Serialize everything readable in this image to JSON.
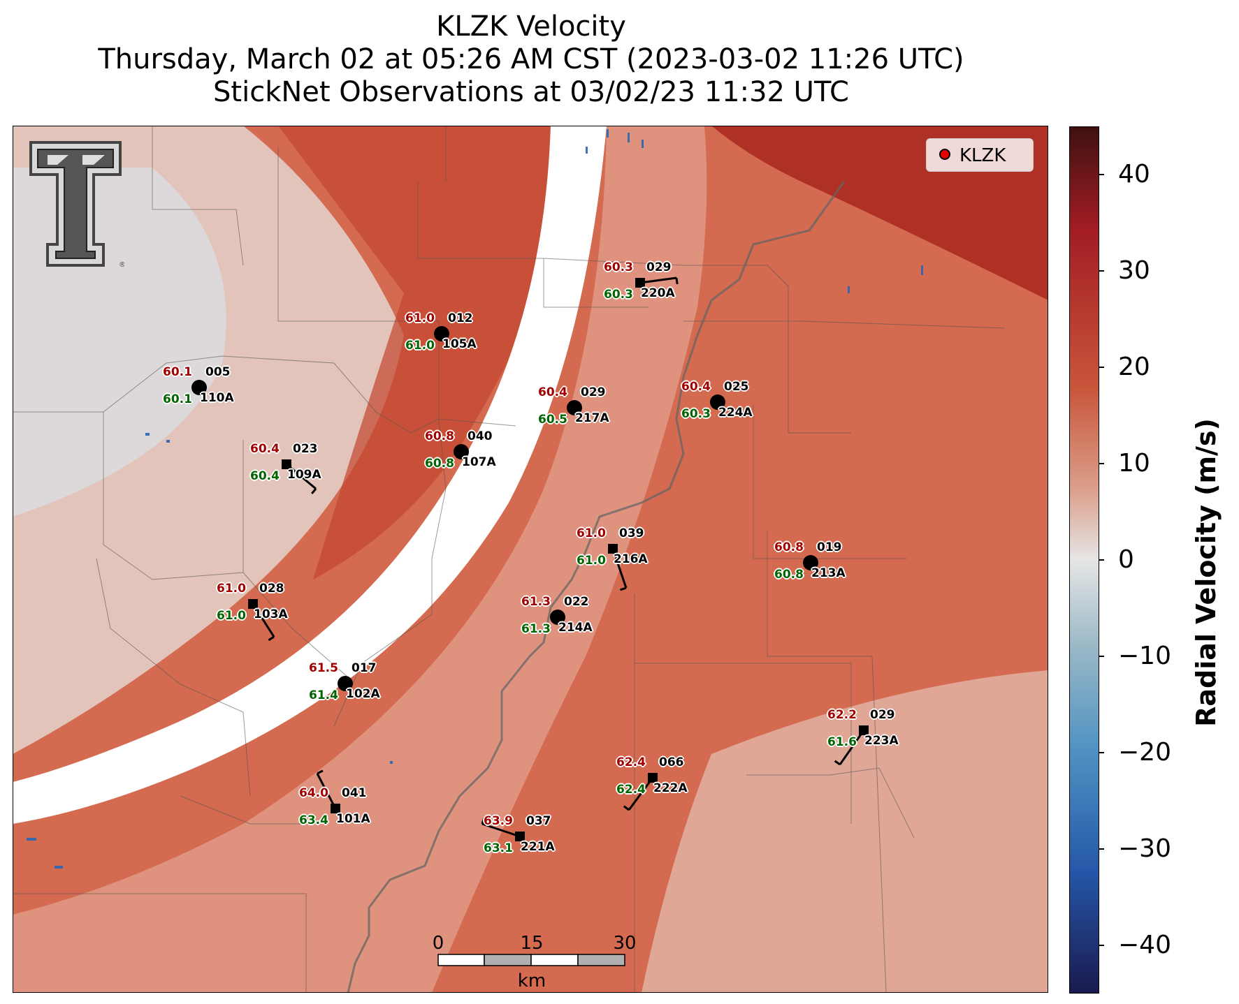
{
  "title": {
    "line1": "KLZK Velocity",
    "line2": "Thursday, March 02 at 05:26 AM CST (2023-03-02 11:26 UTC)",
    "line3": "StickNet Observations at 03/02/23 11:32 UTC"
  },
  "colorbar": {
    "label": "Radial Velocity (m/s)",
    "ticks": [
      "40",
      "30",
      "20",
      "10",
      "0",
      "−10",
      "−20",
      "−30",
      "−40"
    ],
    "range": [
      -45,
      45
    ],
    "colors": [
      "#1a1a4e",
      "#2557a8",
      "#4f92c2",
      "#9ab8c6",
      "#e6e6e6",
      "#dba08c",
      "#c8553a",
      "#a31d24",
      "#3e1010"
    ]
  },
  "legend": {
    "label": "KLZK",
    "marker_color": "#e00000"
  },
  "scalebar": {
    "ticks": [
      "0",
      "15",
      "30"
    ],
    "unit": "km"
  },
  "logo": {
    "name": "Texas Tech double-T",
    "mark": "®"
  },
  "stations": [
    {
      "id": "005",
      "probe": "110A",
      "temp": "60.1",
      "dew": "60.1",
      "marker": "circle"
    },
    {
      "id": "012",
      "probe": "105A",
      "temp": "61.0",
      "dew": "61.0",
      "marker": "circle"
    },
    {
      "id": "029",
      "probe": "220A",
      "temp": "60.3",
      "dew": "60.3",
      "marker": "square"
    },
    {
      "id": "029",
      "probe": "217A",
      "temp": "60.4",
      "dew": "60.5",
      "marker": "circle"
    },
    {
      "id": "025",
      "probe": "224A",
      "temp": "60.4",
      "dew": "60.3",
      "marker": "circle"
    },
    {
      "id": "023",
      "probe": "109A",
      "temp": "60.4",
      "dew": "60.4",
      "marker": "square"
    },
    {
      "id": "040",
      "probe": "107A",
      "temp": "60.8",
      "dew": "60.8",
      "marker": "circle"
    },
    {
      "id": "039",
      "probe": "216A",
      "temp": "61.0",
      "dew": "61.0",
      "marker": "square"
    },
    {
      "id": "019",
      "probe": "213A",
      "temp": "60.8",
      "dew": "60.8",
      "marker": "circle"
    },
    {
      "id": "028",
      "probe": "103A",
      "temp": "61.0",
      "dew": "61.0",
      "marker": "square"
    },
    {
      "id": "022",
      "probe": "214A",
      "temp": "61.3",
      "dew": "61.3",
      "marker": "circle"
    },
    {
      "id": "017",
      "probe": "102A",
      "temp": "61.5",
      "dew": "61.4",
      "marker": "circle"
    },
    {
      "id": "029",
      "probe": "223A",
      "temp": "62.2",
      "dew": "61.6",
      "marker": "square"
    },
    {
      "id": "066",
      "probe": "222A",
      "temp": "62.4",
      "dew": "62.4",
      "marker": "square"
    },
    {
      "id": "041",
      "probe": "101A",
      "temp": "64.0",
      "dew": "63.4",
      "marker": "square"
    },
    {
      "id": "037",
      "probe": "221A",
      "temp": "63.9",
      "dew": "63.1",
      "marker": "square"
    }
  ]
}
